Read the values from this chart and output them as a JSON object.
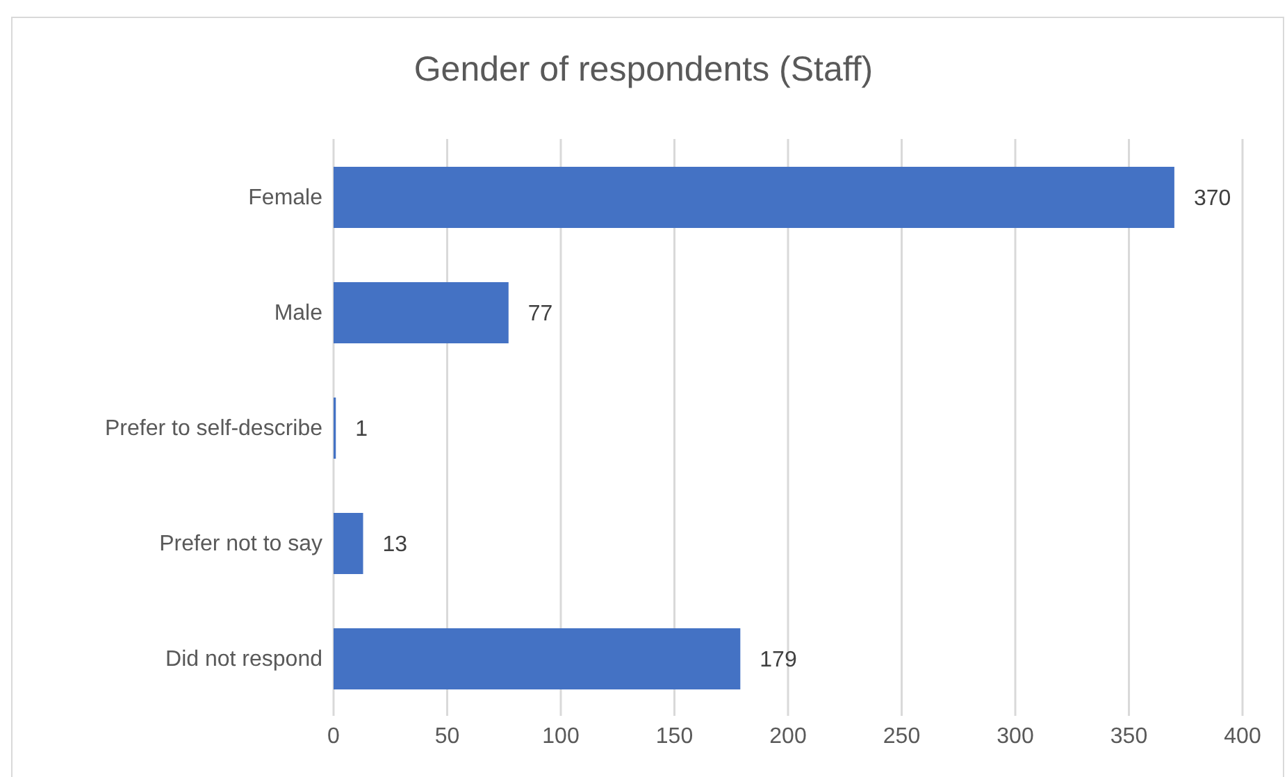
{
  "chart_data": {
    "type": "bar",
    "orientation": "horizontal",
    "title": "Gender of respondents (Staff)",
    "categories": [
      "Female",
      "Male",
      "Prefer to self-describe",
      "Prefer not to say",
      "Did not respond"
    ],
    "values": [
      370,
      77,
      1,
      13,
      179
    ],
    "color": "#4472c4",
    "xlim": [
      0,
      400
    ],
    "xticks": [
      0,
      50,
      100,
      150,
      200,
      250,
      300,
      350,
      400
    ],
    "grid": "x",
    "data_labels": true,
    "legend": false
  }
}
